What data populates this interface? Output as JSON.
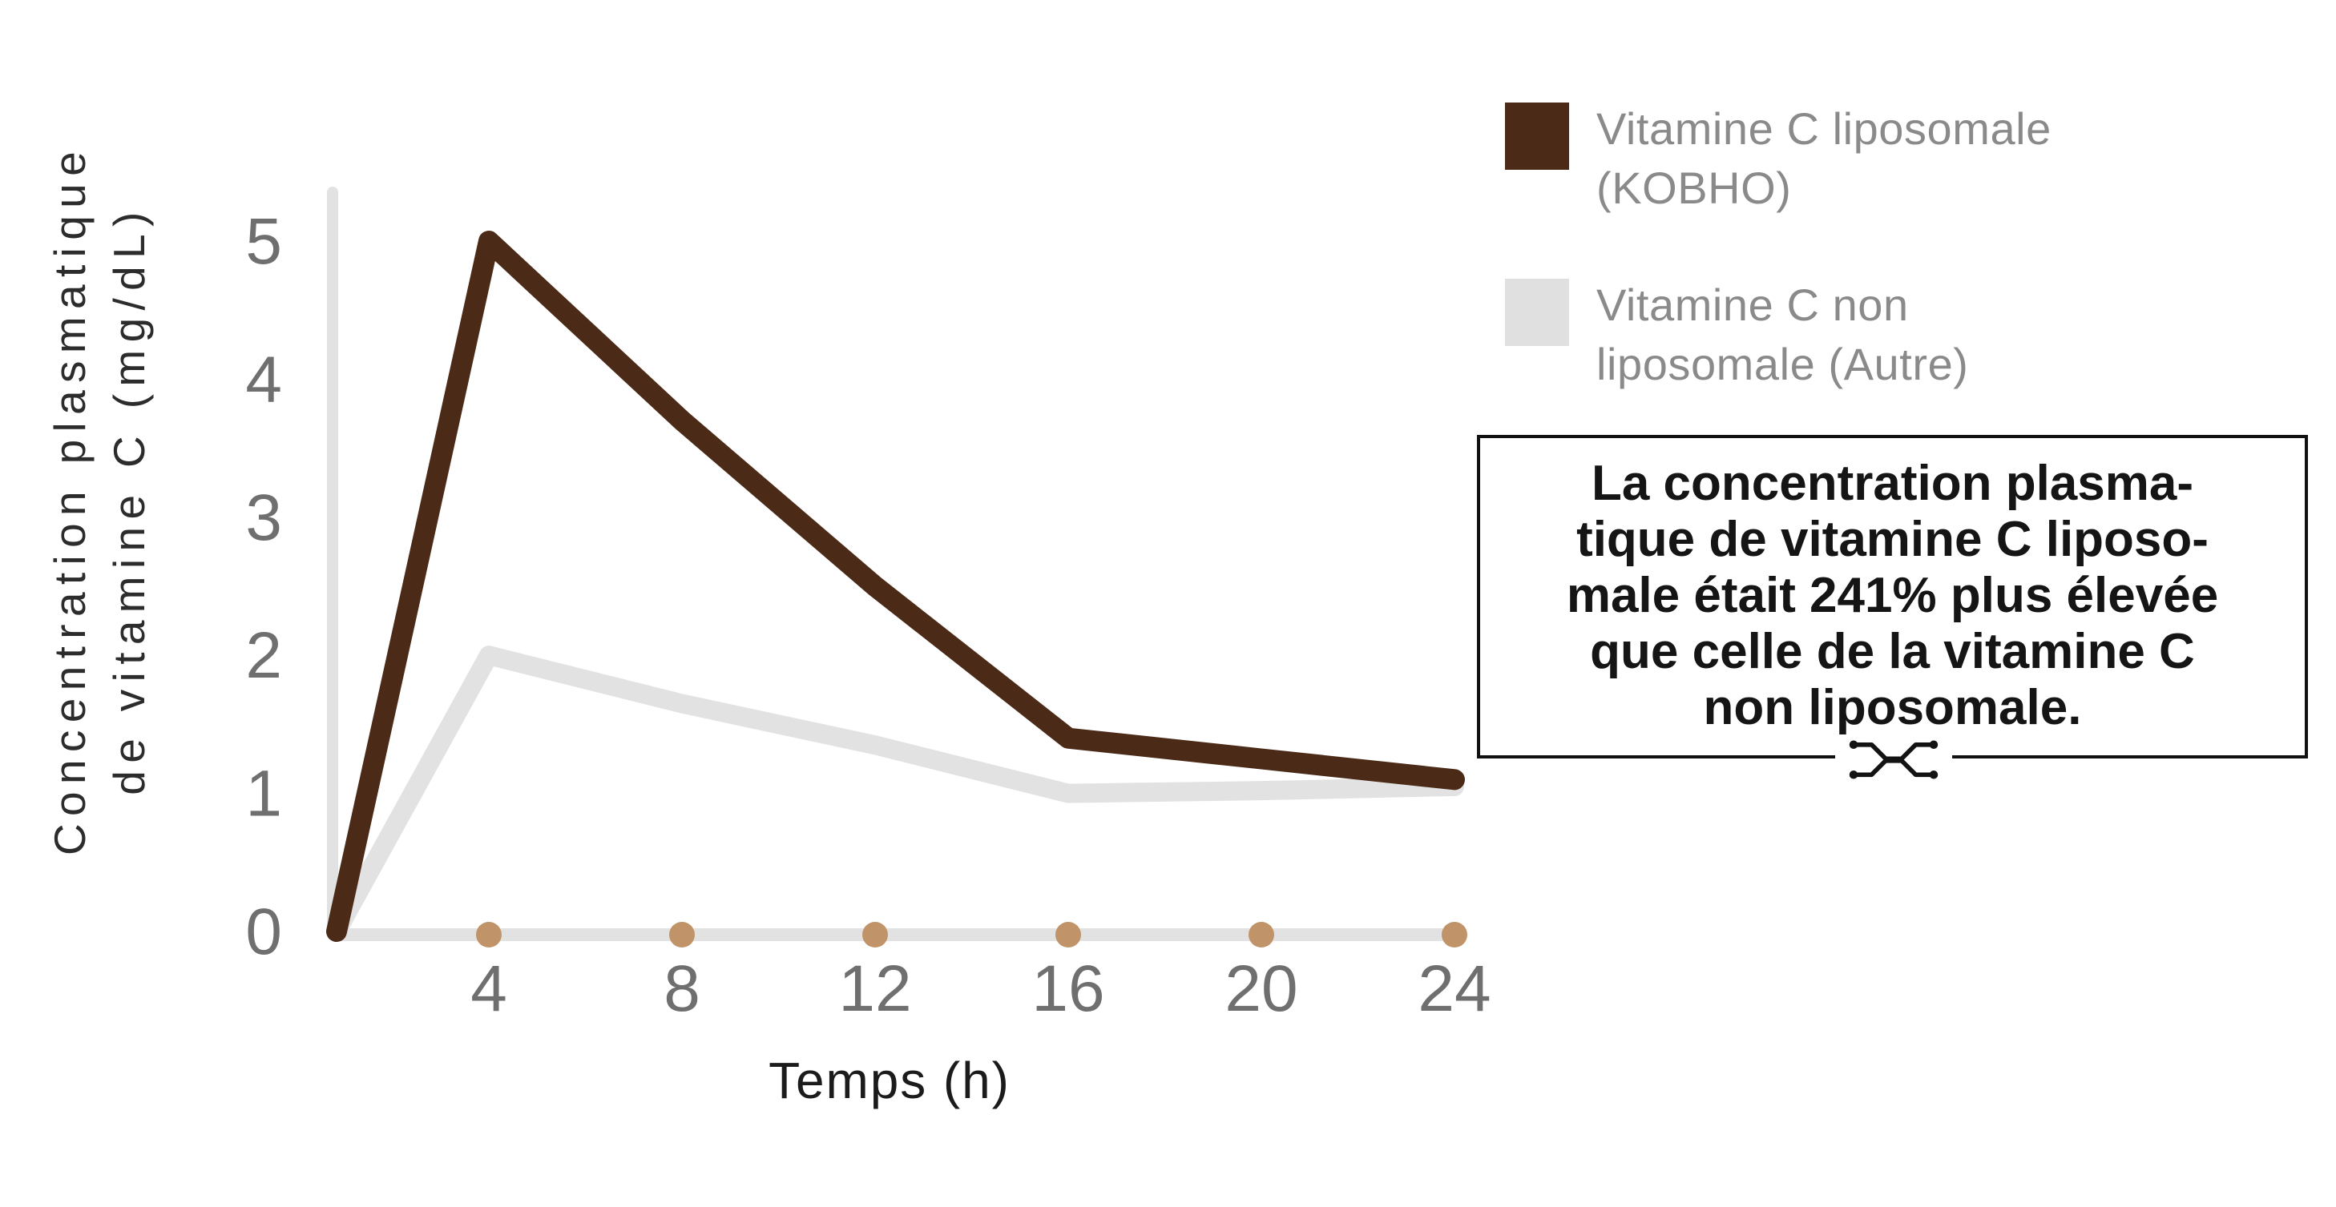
{
  "chart": {
    "xlabel": "Temps (h)",
    "ylabel_line1": "Concentration plasmatique",
    "ylabel_line2": "de vitamine C (mg/dL)"
  },
  "legend": {
    "items": [
      {
        "label_line1": "Vitamine C liposomale",
        "label_line2": "(KOBHO)",
        "color": "#4b2a17"
      },
      {
        "label_line1": "Vitamine C non",
        "label_line2": "liposomale (Autre)",
        "color": "#e0e0e0"
      }
    ]
  },
  "annotation": {
    "lines": [
      "La concentration plasma-",
      "tique de vitamine C liposo-",
      "male était 241% plus élevée",
      "que celle de la vitamine C",
      "non liposomale."
    ]
  },
  "chart_data": {
    "type": "line",
    "title": "",
    "xlabel": "Temps (h)",
    "ylabel": "Concentration plasmatique de vitamine C (mg/dL)",
    "x_ticks": [
      4,
      8,
      12,
      16,
      20,
      24
    ],
    "y_ticks": [
      0,
      1,
      2,
      3,
      4,
      5
    ],
    "xlim": [
      0,
      24
    ],
    "ylim": [
      0,
      5.2
    ],
    "grid": false,
    "legend_position": "upper right",
    "marker_color": "#c09468",
    "axis_color": "#e2e2e2",
    "tick_label_color": "#6f6f6f",
    "series": [
      {
        "name": "Vitamine C liposomale (KOBHO)",
        "color": "#4b2a17",
        "x": [
          0,
          4,
          8,
          12,
          16,
          20,
          24
        ],
        "values": [
          0,
          5.0,
          3.7,
          2.5,
          1.4,
          1.25,
          1.1
        ]
      },
      {
        "name": "Vitamine C non liposomale (Autre)",
        "color": "#e2e2e2",
        "x": [
          0,
          4,
          8,
          12,
          16,
          20,
          24
        ],
        "values": [
          0,
          2.0,
          1.65,
          1.35,
          1.0,
          1.02,
          1.05
        ]
      }
    ]
  }
}
